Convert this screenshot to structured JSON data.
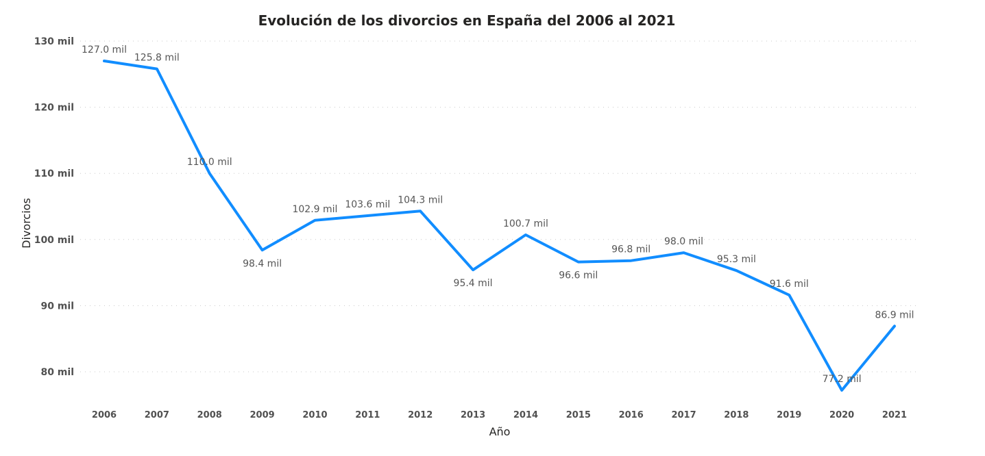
{
  "chart_data": {
    "type": "line",
    "title": "Evolución de los divorcios en España del 2006 al 2021",
    "xlabel": "Año",
    "ylabel": "Divorcios",
    "x": [
      "2006",
      "2007",
      "2008",
      "2009",
      "2010",
      "2011",
      "2012",
      "2013",
      "2014",
      "2015",
      "2016",
      "2017",
      "2018",
      "2019",
      "2020",
      "2021"
    ],
    "series": [
      {
        "values": [
          127.0,
          125.8,
          110.0,
          98.4,
          102.9,
          103.6,
          104.3,
          95.4,
          100.7,
          96.6,
          96.8,
          98.0,
          95.3,
          91.6,
          77.2,
          86.9
        ],
        "labels": [
          "127.0 mil",
          "125.8 mil",
          "110.0 mil",
          "98.4 mil",
          "102.9 mil",
          "103.6 mil",
          "104.3 mil",
          "95.4 mil",
          "100.7 mil",
          "96.6 mil",
          "96.8 mil",
          "98.0 mil",
          "95.3 mil",
          "91.6 mil",
          "77.2 mil",
          "86.9 mil"
        ],
        "label_position": [
          "above",
          "above",
          "above",
          "below",
          "above",
          "above",
          "above",
          "below",
          "above",
          "below",
          "above",
          "above",
          "above",
          "above",
          "above",
          "above"
        ]
      }
    ],
    "ylim": [
      75,
      130
    ],
    "yticks": [
      80,
      90,
      100,
      110,
      120,
      130
    ],
    "ytick_labels": [
      "80 mil",
      "90 mil",
      "100 mil",
      "110 mil",
      "120 mil",
      "130 mil"
    ],
    "grid": true,
    "line_color": "#118DFF"
  }
}
